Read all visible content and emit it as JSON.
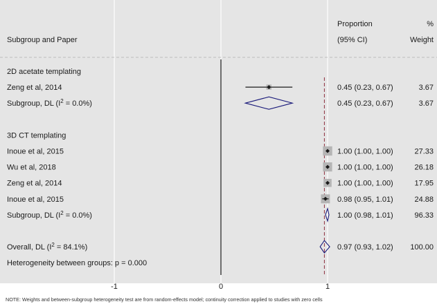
{
  "chart_data": {
    "type": "forest",
    "headers": {
      "label": "Subgroup and Paper",
      "estimate_top": "Proportion",
      "estimate_bottom": "(95% CI)",
      "weight_top": "%",
      "weight_bottom": "Weight"
    },
    "xaxis": {
      "ticks": [
        {
          "value": -1,
          "label": "-1"
        },
        {
          "value": 0,
          "label": "0"
        },
        {
          "value": 1,
          "label": "1"
        }
      ],
      "range": [
        -2,
        1
      ]
    },
    "reference_line": 0,
    "overall_line": 0.97,
    "rows": [
      {
        "kind": "group",
        "label": "2D acetate templating"
      },
      {
        "kind": "study",
        "label": "Zeng et al, 2014",
        "est": 0.45,
        "lo": 0.23,
        "hi": 0.67,
        "ci_text": "0.45 (0.23, 0.67)",
        "weight": "3.67",
        "w": 3.67
      },
      {
        "kind": "subgroup",
        "label": "Subgroup, DL (I² = 0.0%)",
        "est": 0.45,
        "lo": 0.23,
        "hi": 0.67,
        "ci_text": "0.45 (0.23, 0.67)",
        "weight": "3.67"
      },
      {
        "kind": "blank"
      },
      {
        "kind": "group",
        "label": "3D CT templating"
      },
      {
        "kind": "study",
        "label": "Inoue et al, 2015",
        "est": 1.0,
        "lo": 1.0,
        "hi": 1.0,
        "ci_text": "1.00 (1.00, 1.00)",
        "weight": "27.33",
        "w": 27.33
      },
      {
        "kind": "study",
        "label": "Wu et al, 2018",
        "est": 1.0,
        "lo": 1.0,
        "hi": 1.0,
        "ci_text": "1.00 (1.00, 1.00)",
        "weight": "26.18",
        "w": 26.18
      },
      {
        "kind": "study",
        "label": "Zeng et al, 2014",
        "est": 1.0,
        "lo": 1.0,
        "hi": 1.0,
        "ci_text": "1.00 (1.00, 1.00)",
        "weight": "17.95",
        "w": 17.95
      },
      {
        "kind": "study",
        "label": "Inoue et al, 2015",
        "est": 0.98,
        "lo": 0.95,
        "hi": 1.01,
        "ci_text": "0.98 (0.95, 1.01)",
        "weight": "24.88",
        "w": 24.88
      },
      {
        "kind": "subgroup",
        "label": "Subgroup, DL (I² = 0.0%)",
        "est": 1.0,
        "lo": 0.98,
        "hi": 1.01,
        "ci_text": "1.00 (0.98, 1.01)",
        "weight": "96.33"
      },
      {
        "kind": "blank"
      },
      {
        "kind": "overall",
        "label": "Overall, DL (I² = 84.1%)",
        "est": 0.97,
        "lo": 0.93,
        "hi": 1.02,
        "ci_text": "0.97 (0.93, 1.02)",
        "weight": "100.00"
      },
      {
        "kind": "text",
        "label": "Heterogeneity between groups: p = 0.000"
      }
    ],
    "note": "NOTE: Weights and between-subgroup heterogeneity test are from random-effects model; continuity correction applied to studies with zero cells",
    "colors": {
      "background": "#e5e5e5",
      "grid": "#ffffff",
      "diamond": "#1a1a7a",
      "overall_line": "#8b2a3a",
      "box": "#b5b5b5"
    }
  }
}
